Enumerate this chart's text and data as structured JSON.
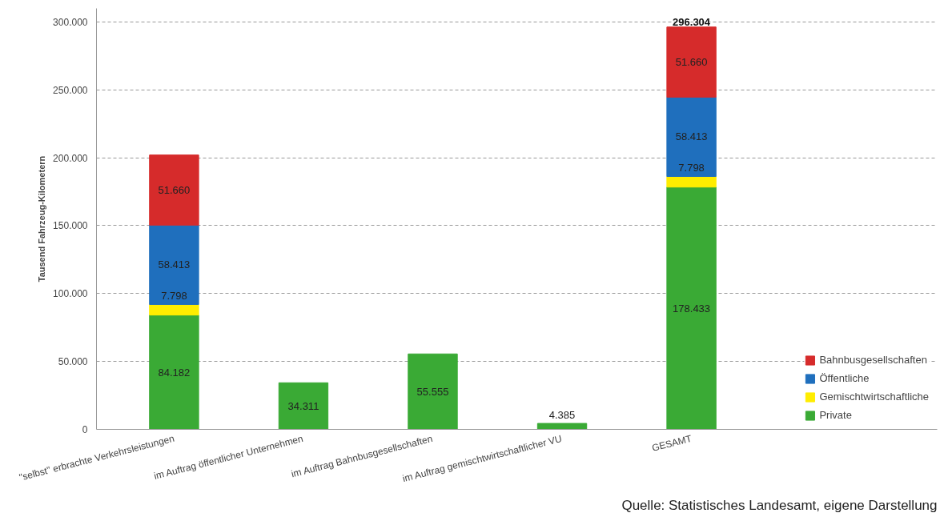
{
  "chart_data": {
    "type": "bar",
    "stacked": true,
    "ylabel": "Tausend Fahrzeug-Kilometern",
    "categories": [
      "\"selbst\" erbrachte Verkehrsleistungen",
      "im Auftrag öffentlicher Unternehmen",
      "im Auftrag Bahnbusgesellschaften",
      "im Auftrag gemischtwirtschaftlicher VU",
      "GESAMT"
    ],
    "series": [
      {
        "name": "Private",
        "color": "#3aaa35",
        "values": [
          84182,
          34311,
          55555,
          4385,
          178433
        ],
        "value_labels": [
          "84.182",
          "34.311",
          "55.555",
          "4.385",
          "178.433"
        ]
      },
      {
        "name": "Gemischtwirtschaftliche",
        "color": "#ffed00",
        "values": [
          7798,
          null,
          null,
          null,
          7798
        ],
        "value_labels": [
          "7.798",
          null,
          null,
          null,
          "7.798"
        ]
      },
      {
        "name": "Öffentliche",
        "color": "#1f6fbd",
        "values": [
          58413,
          null,
          null,
          null,
          58413
        ],
        "value_labels": [
          "58.413",
          null,
          null,
          null,
          "58.413"
        ]
      },
      {
        "name": "Bahnbusgesellschaften",
        "color": "#d62b2b",
        "values": [
          51660,
          null,
          null,
          null,
          51660
        ],
        "value_labels": [
          "51.660",
          null,
          null,
          null,
          "51.660"
        ]
      }
    ],
    "totals": [
      null,
      null,
      null,
      null,
      "296.304"
    ],
    "ylim": [
      0,
      310000
    ],
    "yticks": [
      0,
      {
        "value": 50000,
        "label": "50.000"
      },
      {
        "value": 100000,
        "label": "100.000"
      },
      {
        "value": 150000,
        "label": "150.000"
      },
      {
        "value": 200000,
        "label": "200.000"
      },
      {
        "value": 250000,
        "label": "250.000"
      },
      {
        "value": 300000,
        "label": "300.000"
      }
    ],
    "grid": "y",
    "legend": "bottom right",
    "annotations": [
      "Quelle: Statistisches Landesamt, eigene Darstellung"
    ]
  }
}
